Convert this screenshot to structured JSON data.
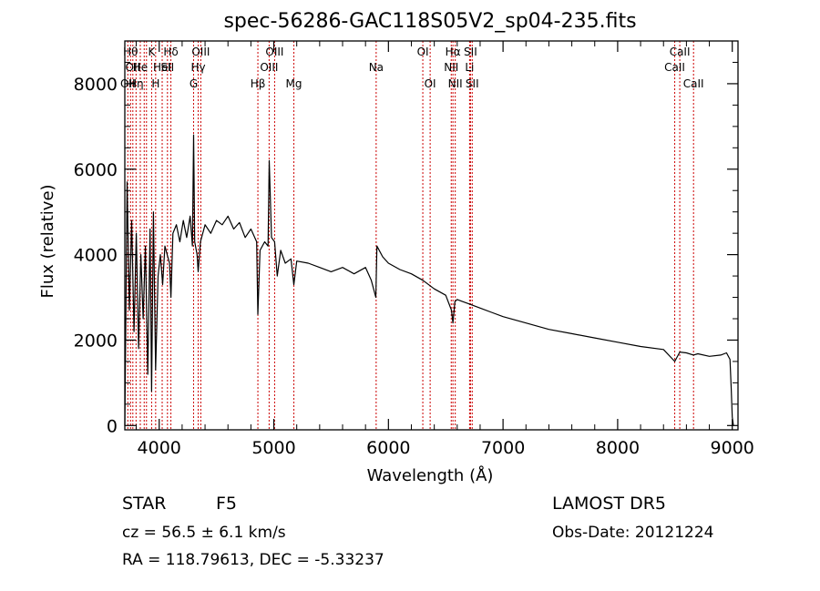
{
  "chart_data": {
    "type": "line",
    "title": "spec-56286-GAC118S05V2_sp04-235.fits",
    "xlabel": "Wavelength (Å)",
    "ylabel": "Flux (relative)",
    "xlim": [
      3700,
      9050
    ],
    "ylim": [
      -100,
      9000
    ],
    "xticks": [
      4000,
      5000,
      6000,
      7000,
      8000,
      9000
    ],
    "yticks": [
      0,
      2000,
      4000,
      6000,
      8000
    ],
    "x": [
      3700,
      3720,
      3740,
      3760,
      3780,
      3800,
      3820,
      3840,
      3860,
      3880,
      3900,
      3920,
      3934,
      3950,
      3969,
      3990,
      4010,
      4030,
      4050,
      4070,
      4090,
      4102,
      4120,
      4150,
      4180,
      4210,
      4240,
      4270,
      4290,
      4300,
      4310,
      4330,
      4340,
      4360,
      4400,
      4450,
      4500,
      4550,
      4600,
      4650,
      4700,
      4750,
      4800,
      4850,
      4861,
      4880,
      4920,
      4950,
      4960,
      4980,
      5007,
      5030,
      5060,
      5100,
      5150,
      5175,
      5200,
      5300,
      5400,
      5500,
      5600,
      5700,
      5800,
      5850,
      5890,
      5900,
      5950,
      6000,
      6100,
      6200,
      6300,
      6400,
      6500,
      6550,
      6563,
      6580,
      6600,
      6700,
      6800,
      6900,
      7000,
      7200,
      7400,
      7600,
      7800,
      8000,
      8200,
      8400,
      8498,
      8542,
      8600,
      8662,
      8700,
      8800,
      8900,
      8950,
      8980,
      8990,
      9000,
      9010
    ],
    "y": [
      0,
      5700,
      2700,
      4800,
      2200,
      4500,
      1800,
      4000,
      2500,
      4200,
      1200,
      4600,
      800,
      5000,
      1300,
      3500,
      4000,
      3300,
      4200,
      4000,
      3800,
      3000,
      4500,
      4700,
      4300,
      4800,
      4400,
      4900,
      4200,
      6800,
      4300,
      4000,
      3600,
      4300,
      4700,
      4500,
      4800,
      4700,
      4900,
      4600,
      4750,
      4400,
      4600,
      4300,
      2600,
      4100,
      4300,
      4200,
      6200,
      4400,
      4300,
      3500,
      4100,
      3800,
      3900,
      3300,
      3850,
      3800,
      3700,
      3600,
      3700,
      3550,
      3700,
      3400,
      3000,
      4200,
      3950,
      3800,
      3650,
      3550,
      3400,
      3200,
      3050,
      2700,
      2400,
      2900,
      2950,
      2850,
      2750,
      2650,
      2550,
      2400,
      2250,
      2150,
      2050,
      1950,
      1850,
      1780,
      1500,
      1720,
      1700,
      1650,
      1680,
      1620,
      1650,
      1700,
      1550,
      900,
      200,
      0
    ],
    "grid": false,
    "lines": [
      {
        "x": 3726,
        "label": "OII",
        "row": 3
      },
      {
        "x": 3750,
        "label": "Hθ",
        "row": 1
      },
      {
        "x": 3770,
        "label": "OII",
        "row": 2
      },
      {
        "x": 3798,
        "label": "Hη",
        "row": 3
      },
      {
        "x": 3835,
        "label": "He",
        "row": 2
      },
      {
        "x": 3869,
        "label": "",
        "row": 0
      },
      {
        "x": 3889,
        "label": "",
        "row": 0
      },
      {
        "x": 3934,
        "label": "K",
        "row": 1
      },
      {
        "x": 3969,
        "label": "H",
        "row": 3
      },
      {
        "x": 4026,
        "label": "HeI",
        "row": 2
      },
      {
        "x": 4072,
        "label": "SII",
        "row": 2
      },
      {
        "x": 4102,
        "label": "Hδ",
        "row": 1
      },
      {
        "x": 4300,
        "label": "G",
        "row": 3
      },
      {
        "x": 4340,
        "label": "Hγ",
        "row": 2
      },
      {
        "x": 4363,
        "label": "OIII",
        "row": 1
      },
      {
        "x": 4861,
        "label": "Hβ",
        "row": 3
      },
      {
        "x": 4959,
        "label": "OIII",
        "row": 2
      },
      {
        "x": 5007,
        "label": "OIII",
        "row": 1
      },
      {
        "x": 5175,
        "label": "Mg",
        "row": 3
      },
      {
        "x": 5893,
        "label": "Na",
        "row": 2
      },
      {
        "x": 6300,
        "label": "OI",
        "row": 1
      },
      {
        "x": 6364,
        "label": "OI",
        "row": 3
      },
      {
        "x": 6548,
        "label": "NII",
        "row": 2
      },
      {
        "x": 6563,
        "label": "Hα",
        "row": 1
      },
      {
        "x": 6583,
        "label": "NII",
        "row": 3
      },
      {
        "x": 6708,
        "label": "Li",
        "row": 2
      },
      {
        "x": 6716,
        "label": "SII",
        "row": 1
      },
      {
        "x": 6731,
        "label": "SII",
        "row": 3
      },
      {
        "x": 8498,
        "label": "CaII",
        "row": 2
      },
      {
        "x": 8542,
        "label": "CaII",
        "row": 1
      },
      {
        "x": 8662,
        "label": "CaII",
        "row": 3
      }
    ],
    "colors": {
      "spectrum": "#000000",
      "lines": "#cc0000"
    }
  },
  "info": {
    "class": "STAR",
    "subclass": "F5",
    "survey": "LAMOST DR5",
    "cz": "cz = 56.5 ± 6.1 km/s",
    "obs_date": "Obs-Date: 20121224",
    "coords": "RA = 118.79613, DEC =  -5.33237"
  }
}
